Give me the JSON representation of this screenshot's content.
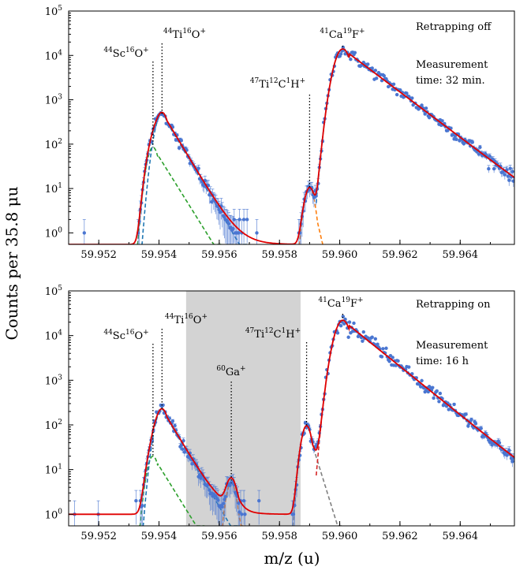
{
  "figure": {
    "ylabel": "Counts per 35.8 μu",
    "xlabel": "m/z (u)"
  },
  "chart_data": [
    {
      "type": "scatter",
      "panel": "top",
      "xlim": [
        59.951,
        59.9658
      ],
      "ylim": [
        0.55,
        100000
      ],
      "yscale": "log",
      "x_ticks": [
        "59.952",
        "59.954",
        "59.956",
        "59.958",
        "59.960",
        "59.962",
        "59.964"
      ],
      "x_tick_values": [
        59.952,
        59.954,
        59.956,
        59.958,
        59.96,
        59.962,
        59.964
      ],
      "y_ticks": [
        {
          "value": 1,
          "base": "10",
          "exp": "0"
        },
        {
          "value": 10,
          "base": "10",
          "exp": "1"
        },
        {
          "value": 100,
          "base": "10",
          "exp": "2"
        },
        {
          "value": 1000,
          "base": "10",
          "exp": "3"
        },
        {
          "value": 10000,
          "base": "10",
          "exp": "4"
        },
        {
          "value": 100000,
          "base": "10",
          "exp": "5"
        }
      ],
      "notes": [
        "Retrapping off",
        "Measurement",
        "time: 32 min."
      ],
      "baseline": 0.55,
      "peaks": [
        {
          "label": [
            [
              "44",
              "Sc"
            ],
            [
              "16",
              "O"
            ],
            [
              "",
              "+"
            ]
          ],
          "x": 59.9538,
          "height": 85,
          "sigma_left": 0.00016,
          "tail_right": 0.0004,
          "component_color": "#2ca02c"
        },
        {
          "label": [
            [
              "44",
              "Ti"
            ],
            [
              "16",
              "O"
            ],
            [
              "",
              "+"
            ]
          ],
          "x": 59.9541,
          "height": 480,
          "sigma_left": 0.00018,
          "tail_right": 0.00038,
          "component_color": "#1f77b4"
        },
        {
          "label": [
            [
              "47",
              "Ti"
            ],
            [
              "12",
              "C"
            ],
            [
              "1",
              "H"
            ],
            [
              "",
              "+"
            ]
          ],
          "x": 59.959,
          "height": 10,
          "sigma_left": 0.00014,
          "tail_right": 0.00015,
          "component_color": "#ff7f0e"
        },
        {
          "label": [
            [
              "41",
              "Ca"
            ],
            [
              "19",
              "F"
            ],
            [
              "",
              "+"
            ]
          ],
          "x": 59.9601,
          "height": 14000,
          "sigma_left": 0.00022,
          "tail_right": 0.00085,
          "component_color": "#1f77b4"
        }
      ]
    },
    {
      "type": "scatter",
      "panel": "bottom",
      "xlim": [
        59.951,
        59.9658
      ],
      "ylim": [
        0.55,
        100000
      ],
      "yscale": "log",
      "x_ticks": [
        "59.952",
        "59.954",
        "59.956",
        "59.958",
        "59.960",
        "59.962",
        "59.964"
      ],
      "x_tick_values": [
        59.952,
        59.954,
        59.956,
        59.958,
        59.96,
        59.962,
        59.964
      ],
      "y_ticks": [
        {
          "value": 1,
          "base": "10",
          "exp": "0"
        },
        {
          "value": 10,
          "base": "10",
          "exp": "1"
        },
        {
          "value": 100,
          "base": "10",
          "exp": "2"
        },
        {
          "value": 1000,
          "base": "10",
          "exp": "3"
        },
        {
          "value": 10000,
          "base": "10",
          "exp": "4"
        },
        {
          "value": 100000,
          "base": "10",
          "exp": "5"
        }
      ],
      "notes": [
        "Retrapping on",
        "Measurement",
        "time: 16 h"
      ],
      "baseline": 1.0,
      "shaded_region": [
        59.9549,
        59.9587
      ],
      "peaks": [
        {
          "label": [
            [
              "44",
              "Sc"
            ],
            [
              "16",
              "O"
            ],
            [
              "",
              "+"
            ]
          ],
          "x": 59.9538,
          "height": 20,
          "sigma_left": 0.00016,
          "tail_right": 0.0004,
          "component_color": "#2ca02c"
        },
        {
          "label": [
            [
              "44",
              "Ti"
            ],
            [
              "16",
              "O"
            ],
            [
              "",
              "+"
            ]
          ],
          "x": 59.9541,
          "height": 220,
          "sigma_left": 0.00018,
          "tail_right": 0.00038,
          "component_color": "#1f77b4"
        },
        {
          "label": [
            [
              "60",
              "Ga"
            ],
            [
              "",
              "+"
            ]
          ],
          "x": 59.9564,
          "height": 5,
          "sigma_left": 0.00014,
          "tail_right": 0.00015,
          "component_color": "#ff7f0e"
        },
        {
          "label": [
            [
              "47",
              "Ti"
            ],
            [
              "12",
              "C"
            ],
            [
              "1",
              "H"
            ],
            [
              "",
              "+"
            ]
          ],
          "x": 59.9589,
          "height": 95,
          "sigma_left": 0.00014,
          "tail_right": 0.0002,
          "component_color": "#7f7f7f"
        },
        {
          "label": [
            [
              "41",
              "Ca"
            ],
            [
              "19",
              "F"
            ],
            [
              "",
              "+"
            ]
          ],
          "x": 59.9601,
          "height": 22000,
          "sigma_left": 0.00022,
          "tail_right": 0.0008,
          "component_color": "#d62728"
        }
      ]
    }
  ]
}
